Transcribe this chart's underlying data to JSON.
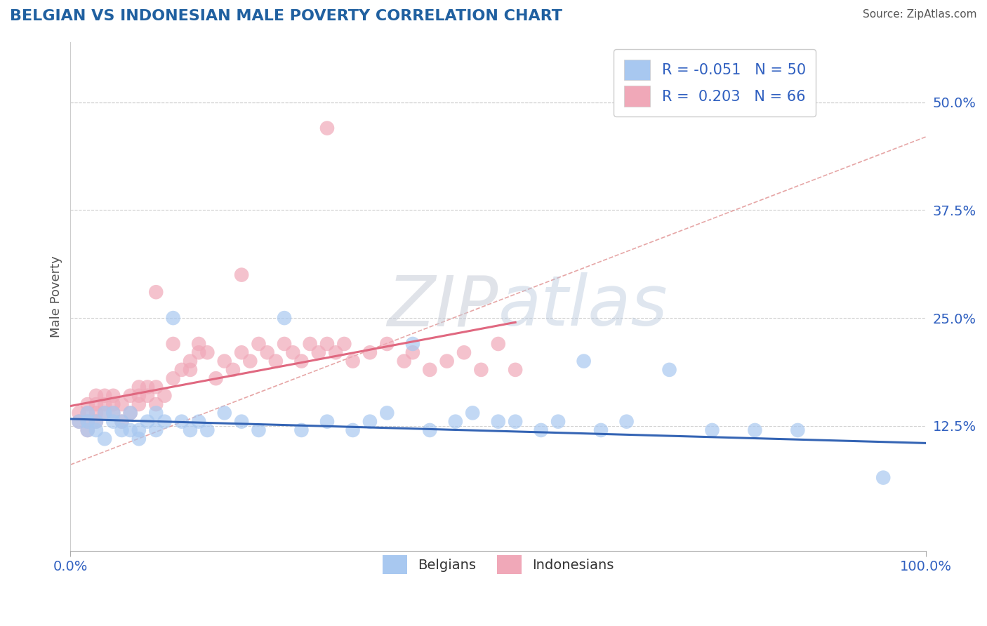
{
  "title": "BELGIAN VS INDONESIAN MALE POVERTY CORRELATION CHART",
  "source": "Source: ZipAtlas.com",
  "ylabel": "Male Poverty",
  "legend_R": [
    -0.051,
    0.203
  ],
  "legend_N": [
    50,
    66
  ],
  "belgian_color": "#a8c8f0",
  "indonesian_color": "#f0a8b8",
  "belgian_line_color": "#3464b4",
  "indonesian_line_color": "#e06880",
  "ref_line_color": "#e09090",
  "yticks": [
    0.125,
    0.25,
    0.375,
    0.5
  ],
  "ytick_labels": [
    "12.5%",
    "25.0%",
    "37.5%",
    "50.0%"
  ],
  "xlim": [
    0.0,
    1.0
  ],
  "ylim": [
    -0.02,
    0.57
  ],
  "title_color": "#2060a0",
  "axis_label_color": "#3060c0",
  "watermark_zip": "ZIP",
  "watermark_atlas": "atlas",
  "bel_line_x0": 0.0,
  "bel_line_y0": 0.133,
  "bel_line_x1": 1.0,
  "bel_line_y1": 0.105,
  "ind_line_x0": 0.0,
  "ind_line_y0": 0.148,
  "ind_line_x1": 0.52,
  "ind_line_y1": 0.245,
  "ref_line_x0": 0.0,
  "ref_line_y0": 0.08,
  "ref_line_x1": 1.0,
  "ref_line_y1": 0.46,
  "bel_scatter_x": [
    0.01,
    0.02,
    0.02,
    0.02,
    0.03,
    0.03,
    0.04,
    0.04,
    0.05,
    0.05,
    0.06,
    0.06,
    0.07,
    0.07,
    0.08,
    0.08,
    0.09,
    0.1,
    0.1,
    0.11,
    0.12,
    0.13,
    0.14,
    0.15,
    0.16,
    0.18,
    0.2,
    0.22,
    0.25,
    0.27,
    0.3,
    0.33,
    0.35,
    0.37,
    0.4,
    0.42,
    0.45,
    0.47,
    0.5,
    0.52,
    0.55,
    0.57,
    0.6,
    0.62,
    0.65,
    0.7,
    0.75,
    0.8,
    0.85,
    0.95
  ],
  "bel_scatter_y": [
    0.13,
    0.13,
    0.12,
    0.14,
    0.12,
    0.13,
    0.11,
    0.14,
    0.13,
    0.14,
    0.12,
    0.13,
    0.12,
    0.14,
    0.12,
    0.11,
    0.13,
    0.12,
    0.14,
    0.13,
    0.25,
    0.13,
    0.12,
    0.13,
    0.12,
    0.14,
    0.13,
    0.12,
    0.25,
    0.12,
    0.13,
    0.12,
    0.13,
    0.14,
    0.22,
    0.12,
    0.13,
    0.14,
    0.13,
    0.13,
    0.12,
    0.13,
    0.2,
    0.12,
    0.13,
    0.19,
    0.12,
    0.12,
    0.12,
    0.065
  ],
  "ind_scatter_x": [
    0.01,
    0.01,
    0.02,
    0.02,
    0.02,
    0.02,
    0.03,
    0.03,
    0.03,
    0.03,
    0.04,
    0.04,
    0.04,
    0.05,
    0.05,
    0.05,
    0.06,
    0.06,
    0.07,
    0.07,
    0.08,
    0.08,
    0.08,
    0.09,
    0.09,
    0.1,
    0.1,
    0.1,
    0.11,
    0.12,
    0.12,
    0.13,
    0.14,
    0.14,
    0.15,
    0.15,
    0.16,
    0.17,
    0.18,
    0.19,
    0.2,
    0.21,
    0.22,
    0.23,
    0.24,
    0.25,
    0.26,
    0.27,
    0.28,
    0.29,
    0.3,
    0.31,
    0.32,
    0.33,
    0.35,
    0.37,
    0.39,
    0.4,
    0.42,
    0.44,
    0.46,
    0.48,
    0.5,
    0.52,
    0.3,
    0.2
  ],
  "ind_scatter_y": [
    0.14,
    0.13,
    0.14,
    0.15,
    0.13,
    0.12,
    0.15,
    0.14,
    0.13,
    0.16,
    0.14,
    0.15,
    0.16,
    0.14,
    0.15,
    0.16,
    0.15,
    0.13,
    0.16,
    0.14,
    0.16,
    0.17,
    0.15,
    0.17,
    0.16,
    0.17,
    0.15,
    0.28,
    0.16,
    0.18,
    0.22,
    0.19,
    0.2,
    0.19,
    0.21,
    0.22,
    0.21,
    0.18,
    0.2,
    0.19,
    0.21,
    0.2,
    0.22,
    0.21,
    0.2,
    0.22,
    0.21,
    0.2,
    0.22,
    0.21,
    0.22,
    0.21,
    0.22,
    0.2,
    0.21,
    0.22,
    0.2,
    0.21,
    0.19,
    0.2,
    0.21,
    0.19,
    0.22,
    0.19,
    0.47,
    0.3
  ]
}
